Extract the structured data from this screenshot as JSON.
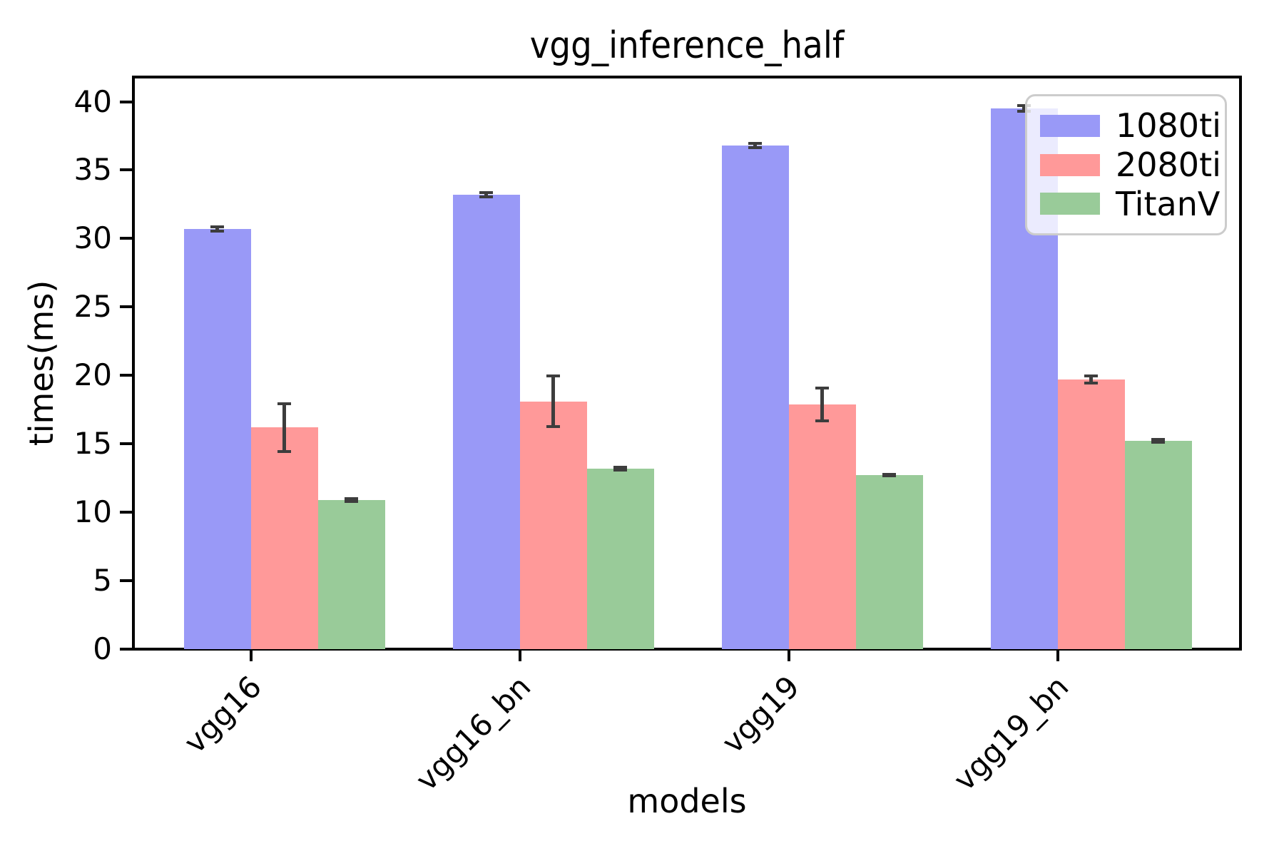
{
  "chart_data": {
    "type": "bar",
    "title": "vgg_inference_half",
    "xlabel": "models",
    "ylabel": "times(ms)",
    "categories": [
      "vgg16",
      "vgg16_bn",
      "vgg19",
      "vgg19_bn"
    ],
    "series": [
      {
        "name": "1080ti",
        "color": "#9999f7",
        "values": [
          30.7,
          33.2,
          36.8,
          39.5
        ],
        "errors": [
          0.15,
          0.15,
          0.15,
          0.2
        ]
      },
      {
        "name": "2080ti",
        "color": "#ff9999",
        "values": [
          16.2,
          18.1,
          17.9,
          19.7
        ],
        "errors": [
          1.75,
          1.85,
          1.2,
          0.25
        ]
      },
      {
        "name": "TitanV",
        "color": "#99cb99",
        "values": [
          10.9,
          13.2,
          12.7,
          15.2
        ],
        "errors": [
          0.1,
          0.1,
          0.05,
          0.1
        ]
      }
    ],
    "yticks": [
      0,
      5,
      10,
      15,
      20,
      25,
      30,
      35,
      40
    ],
    "ylim": [
      0,
      41.8
    ],
    "grid": false,
    "legend_position": "upper right",
    "error_color": "#3d3d3d",
    "xtick_rotation_deg": 45,
    "background_color": "#ffffff",
    "spine_color": "#000000"
  }
}
